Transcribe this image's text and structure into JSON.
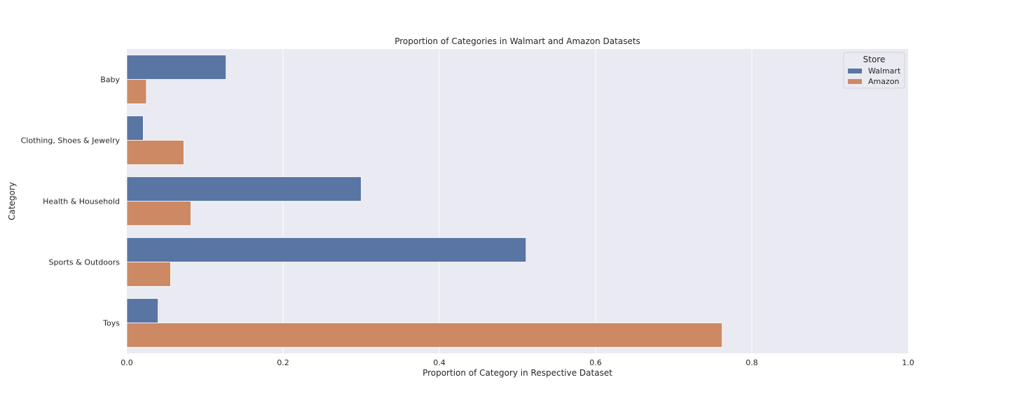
{
  "chart_data": {
    "type": "bar",
    "orientation": "horizontal",
    "title": "Proportion of Categories in Walmart and Amazon Datasets",
    "xlabel": "Proportion of Category in Respective Dataset",
    "ylabel": "Category",
    "categories": [
      "Baby",
      "Clothing, Shoes & Jewelry",
      "Health & Household",
      "Sports & Outdoors",
      "Toys"
    ],
    "series": [
      {
        "name": "Walmart",
        "color": "#5875a4",
        "values": [
          0.127,
          0.021,
          0.3,
          0.511,
          0.04
        ]
      },
      {
        "name": "Amazon",
        "color": "#cc8963",
        "values": [
          0.025,
          0.073,
          0.082,
          0.056,
          0.762
        ]
      }
    ],
    "xlim": [
      0,
      1.0
    ],
    "xticks": [
      0.0,
      0.2,
      0.4,
      0.6,
      0.8,
      1.0
    ],
    "xtick_labels": [
      "0.0",
      "0.2",
      "0.4",
      "0.6",
      "0.8",
      "1.0"
    ],
    "grid": true,
    "background": "#eaeaf2",
    "legend": {
      "title": "Store",
      "placement": "top-right"
    }
  }
}
